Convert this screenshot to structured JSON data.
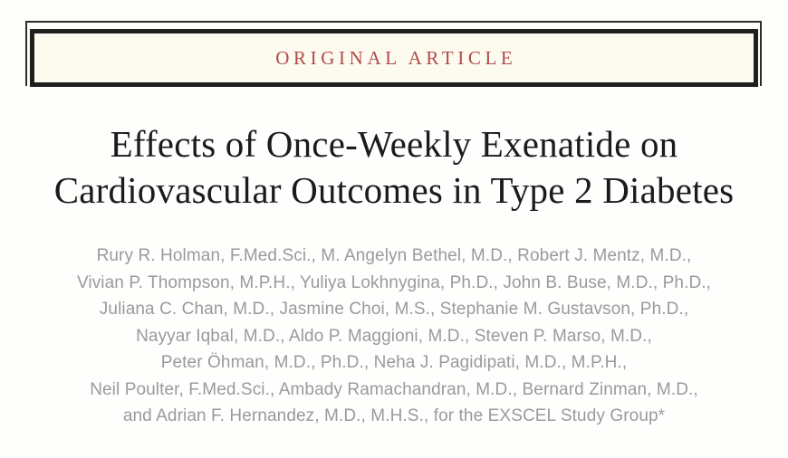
{
  "banner": {
    "label": "ORIGINAL ARTICLE"
  },
  "title": {
    "line1": "Effects of Once-Weekly Exenatide on",
    "line2": "Cardiovascular Outcomes in Type 2 Diabetes"
  },
  "authors": {
    "lines": [
      "Rury R. Holman, F.Med.Sci., M. Angelyn Bethel, M.D., Robert J. Mentz, M.D.,",
      "Vivian P. Thompson, M.P.H., Yuliya Lokhnygina, Ph.D., John B. Buse, M.D., Ph.D.,",
      "Juliana C. Chan, M.D., Jasmine Choi, M.S., Stephanie M. Gustavson, Ph.D.,",
      "Nayyar Iqbal, M.D., Aldo P. Maggioni, M.D., Steven P. Marso, M.D.,",
      "Peter Öhman, M.D., Ph.D., Neha J. Pagidipati, M.D., M.P.H.,",
      "Neil Poulter, F.Med.Sci., Ambady Ramachandran, M.D., Bernard Zinman, M.D.,",
      "and Adrian F. Hernandez, M.D., M.H.S., for the EXSCEL Study Group*"
    ]
  },
  "colors": {
    "accent_red": "#b04a49",
    "border_dark": "#1f1f1d",
    "thin_frame": "#2c2c2a",
    "banner_background": "#fdfbf0",
    "title_black": "#1b1b1b",
    "author_gray": "#9a9a9a",
    "page_background": "#fefefd"
  }
}
